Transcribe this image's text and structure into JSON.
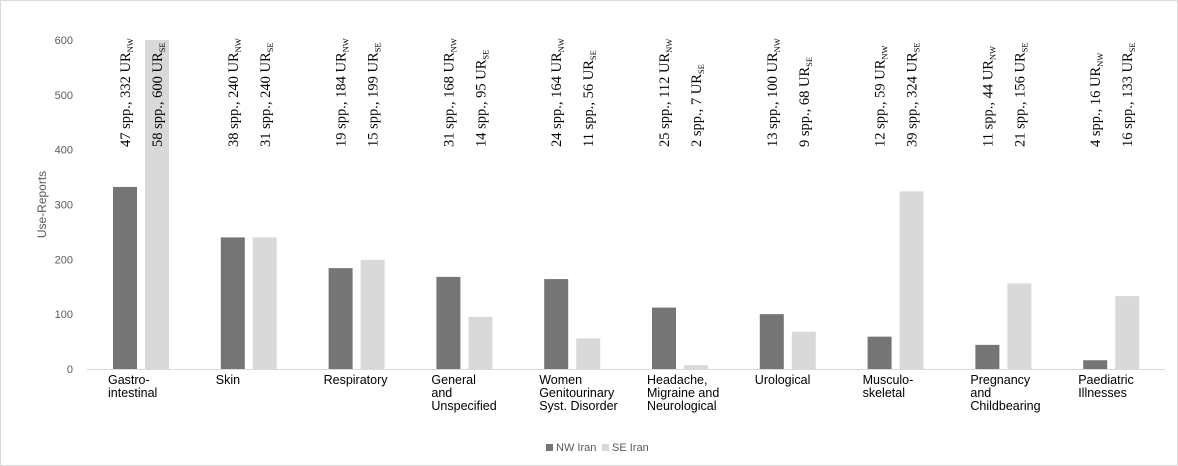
{
  "chart_data": {
    "type": "bar",
    "title": "",
    "xlabel": "",
    "ylabel": "Use-Reports",
    "ylim": [
      0,
      600
    ],
    "yticks": [
      "0",
      "100",
      "200",
      "300",
      "400",
      "500",
      "600"
    ],
    "grid": false,
    "legend_position": "bottom",
    "categories": [
      [
        "Gastro-",
        "intestinal"
      ],
      [
        "Skin"
      ],
      [
        "Respiratory"
      ],
      [
        "General",
        "and",
        "Unspecified"
      ],
      [
        "Women",
        "Genitourinary",
        "Syst. Disorder"
      ],
      [
        "Headache,",
        "Migraine and",
        "Neurological"
      ],
      [
        "Urological"
      ],
      [
        "Musculo-",
        "skeletal"
      ],
      [
        "Pregnancy",
        "and",
        "Childbearing"
      ],
      [
        "Paediatric",
        "Illnesses"
      ]
    ],
    "series": [
      {
        "name": "NW Iran",
        "color": "#757575",
        "values": [
          332,
          240,
          184,
          168,
          164,
          112,
          100,
          59,
          44,
          16
        ],
        "annotations": [
          {
            "text": "47 spp., 332 UR",
            "sub": "NW"
          },
          {
            "text": "38 spp., 240 UR",
            "sub": "NW"
          },
          {
            "text": "19 spp., 184 UR",
            "sub": "NW"
          },
          {
            "text": "31 spp., 168 UR",
            "sub": "NW"
          },
          {
            "text": "24 spp., 164 UR",
            "sub": "NW"
          },
          {
            "text": "25 spp., 112 UR",
            "sub": "NW"
          },
          {
            "text": "13 spp., 100 UR",
            "sub": "NW"
          },
          {
            "text": "12 spp., 59 UR",
            "sub": "NW"
          },
          {
            "text": "11 spp., 44 UR",
            "sub": "NW"
          },
          {
            "text": "4 spp., 16 UR",
            "sub": "NW"
          }
        ]
      },
      {
        "name": "SE Iran",
        "color": "#d9d9d9",
        "values": [
          600,
          240,
          199,
          95,
          56,
          7,
          68,
          324,
          156,
          133
        ],
        "annotations": [
          {
            "text": "58 spp., 600 UR",
            "sub": "SE"
          },
          {
            "text": "31 spp., 240 UR",
            "sub": "SE"
          },
          {
            "text": "15 spp., 199 UR",
            "sub": "SE"
          },
          {
            "text": "14 spp., 95 UR",
            "sub": "SE"
          },
          {
            "text": "11 spp., 56 UR",
            "sub": "SE"
          },
          {
            "text": "2 spp., 7 UR",
            "sub": "SE"
          },
          {
            "text": "9 spp., 68 UR",
            "sub": "SE"
          },
          {
            "text": "39 spp., 324 UR",
            "sub": "SE"
          },
          {
            "text": "21 spp., 156 UR",
            "sub": "SE"
          },
          {
            "text": "16 spp., 133 UR",
            "sub": "SE"
          }
        ]
      }
    ]
  }
}
